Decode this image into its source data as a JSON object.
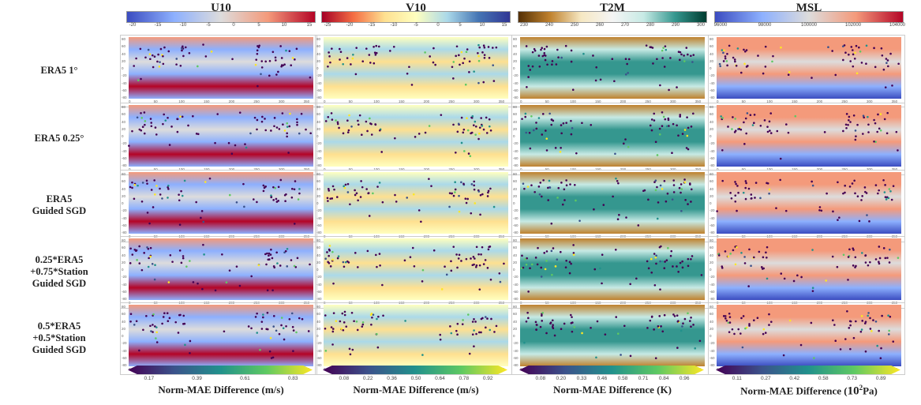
{
  "columns": [
    {
      "title": "U10",
      "ticks": [
        "-20",
        "-15",
        "-10",
        "-5",
        "0",
        "5",
        "10",
        "15"
      ],
      "colors": [
        "#3b4cc0",
        "#8db0fe",
        "#dddcdc",
        "#f49a7b",
        "#b40426"
      ],
      "diff_ticks": [
        "0.17",
        "0.39",
        "0.61",
        "0.83"
      ],
      "diff_label": "Norm-MAE Difference (m/s)"
    },
    {
      "title": "V10",
      "ticks": [
        "-25",
        "-20",
        "-15",
        "-10",
        "-5",
        "0",
        "5",
        "10",
        "15"
      ],
      "colors": [
        "#a50026",
        "#f46d43",
        "#fee090",
        "#ffffbf",
        "#abd9e9",
        "#4575b4",
        "#313695"
      ],
      "diff_ticks": [
        "0.08",
        "0.22",
        "0.36",
        "0.50",
        "0.64",
        "0.78",
        "0.92"
      ],
      "diff_label": "Norm-MAE Difference (m/s)"
    },
    {
      "title": "T2M",
      "ticks": [
        "230",
        "240",
        "250",
        "260",
        "270",
        "280",
        "290",
        "300"
      ],
      "colors": [
        "#543005",
        "#bf812d",
        "#f6e8c3",
        "#f5f5f5",
        "#c7eae5",
        "#35978f",
        "#003c30"
      ],
      "diff_ticks": [
        "0.08",
        "0.20",
        "0.33",
        "0.46",
        "0.58",
        "0.71",
        "0.84",
        "0.96"
      ],
      "diff_label": "Norm-MAE Difference (K)"
    },
    {
      "title": "MSL",
      "ticks": [
        "96000",
        "98000",
        "100000",
        "102000",
        "104000"
      ],
      "colors": [
        "#3b4cc0",
        "#8db0fe",
        "#dddcdc",
        "#f49a7b",
        "#b40426"
      ],
      "diff_ticks": [
        "0.11",
        "0.27",
        "0.42",
        "0.58",
        "0.73",
        "0.89"
      ],
      "diff_label_prefix": "Norm-MAE Difference (",
      "diff_label_base": "10",
      "diff_label_exp": "2",
      "diff_label_suffix": "Pa)"
    }
  ],
  "rows": [
    {
      "lines": [
        "ERA5 1°"
      ]
    },
    {
      "lines": [
        "ERA5 0.25°"
      ]
    },
    {
      "lines": [
        "ERA5",
        "Guided SGD"
      ]
    },
    {
      "lines": [
        "0.25*ERA5",
        "+0.75*Station",
        "Guided SGD"
      ]
    },
    {
      "lines": [
        "0.5*ERA5",
        "+0.5*Station",
        "Guided SGD"
      ]
    }
  ],
  "y_ticks": [
    "80",
    "60",
    "40",
    "20",
    "0",
    "-20",
    "-40",
    "-60",
    "-80"
  ],
  "x_ticks": [
    "0",
    "50",
    "100",
    "150",
    "200",
    "250",
    "300",
    "350"
  ],
  "viridis": [
    "#440154",
    "#3b528b",
    "#21918c",
    "#5ec962",
    "#fde725"
  ]
}
